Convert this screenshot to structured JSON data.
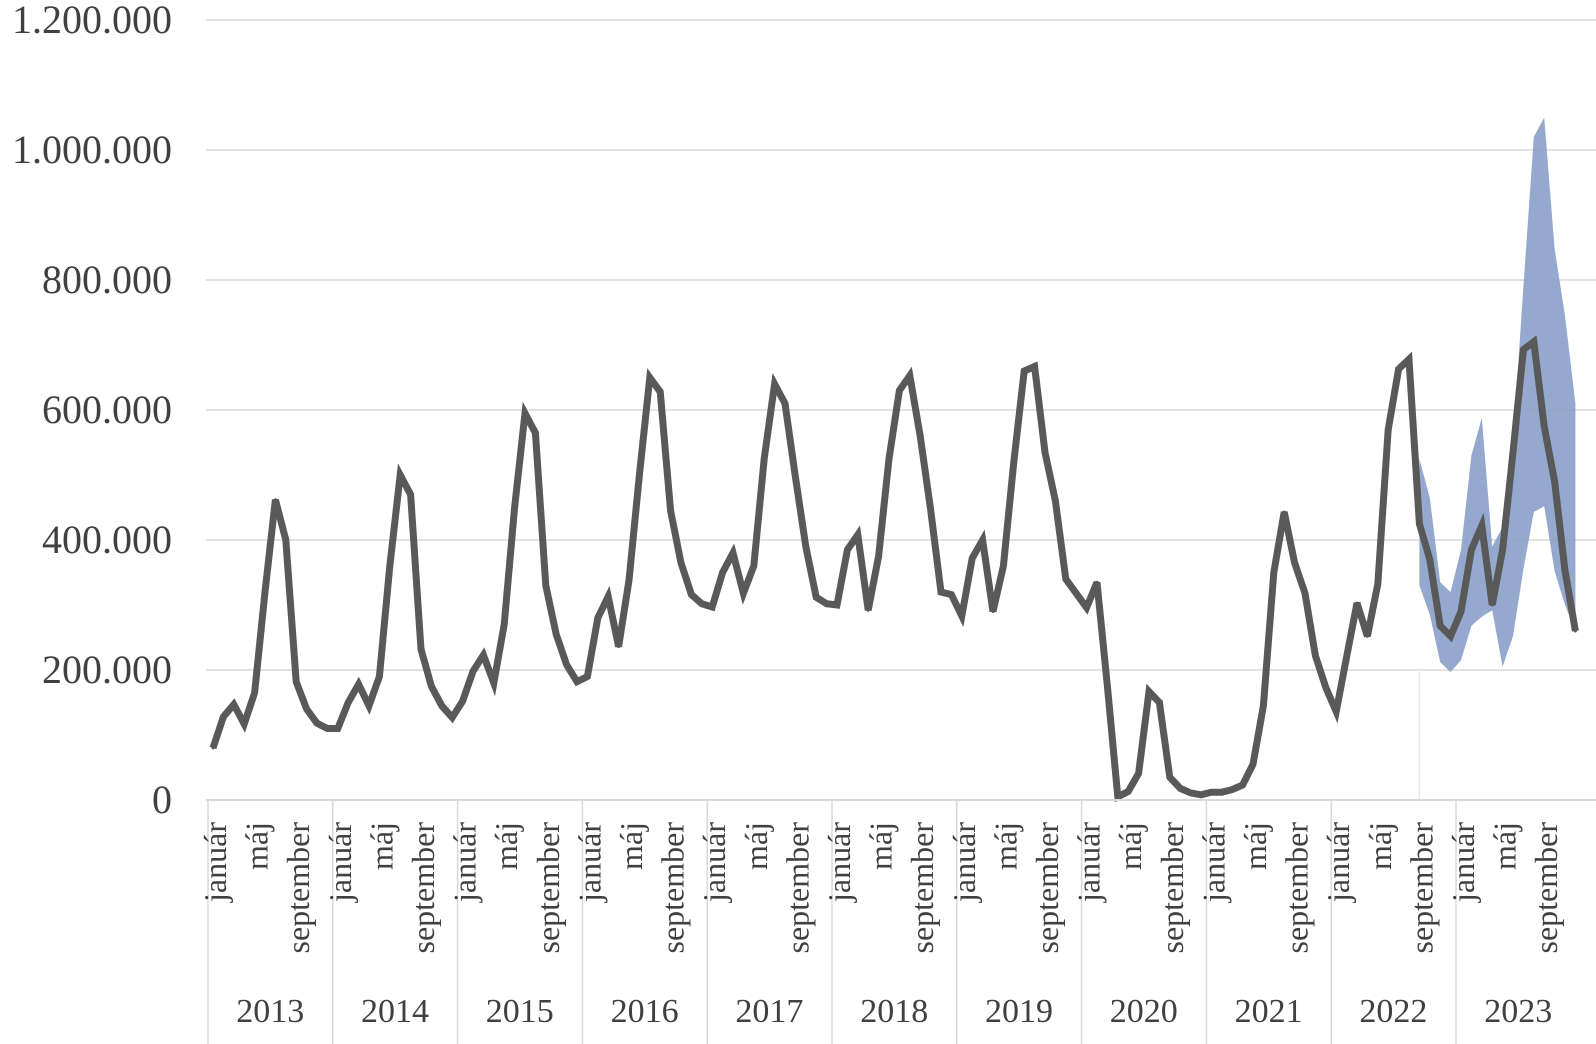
{
  "chart_data": {
    "type": "line",
    "title": "",
    "xlabel": "",
    "ylabel": "",
    "ylim": [
      0,
      1200000
    ],
    "y_ticks": [
      {
        "value": 0,
        "label": "0"
      },
      {
        "value": 200000,
        "label": "200.000"
      },
      {
        "value": 400000,
        "label": "400.000"
      },
      {
        "value": 600000,
        "label": "600.000"
      },
      {
        "value": 800000,
        "label": "800.000"
      },
      {
        "value": 1000000,
        "label": "1.000.000"
      },
      {
        "value": 1200000,
        "label": "1.200.000"
      }
    ],
    "grid": true,
    "legend": "none",
    "month_tick_labels": [
      "január",
      "máj",
      "september"
    ],
    "years": [
      "2013",
      "2014",
      "2015",
      "2016",
      "2017",
      "2018",
      "2019",
      "2020",
      "2021",
      "2022",
      "2023"
    ],
    "year_month_counts": [
      12,
      12,
      12,
      12,
      12,
      12,
      12,
      12,
      12,
      12,
      12
    ],
    "series": [
      {
        "values": [
          80000,
          128000,
          147000,
          117000,
          165000,
          320000,
          462000,
          400000,
          182000,
          140000,
          118000,
          110000,
          110000,
          150000,
          178000,
          145000,
          190000,
          360000,
          500000,
          470000,
          232000,
          175000,
          145000,
          127000,
          152000,
          198000,
          223000,
          180000,
          270000,
          450000,
          595000,
          565000,
          330000,
          255000,
          208000,
          182000,
          190000,
          280000,
          313000,
          236000,
          338000,
          500000,
          650000,
          628000,
          445000,
          365000,
          316000,
          302000,
          297000,
          350000,
          380000,
          318000,
          360000,
          525000,
          640000,
          610000,
          497000,
          390000,
          312000,
          302000,
          300000,
          385000,
          408000,
          292000,
          375000,
          525000,
          630000,
          653000,
          560000,
          447000,
          320000,
          316000,
          283000,
          372000,
          400000,
          290000,
          360000,
          520000,
          660000,
          667000,
          535000,
          460000,
          340000,
          318000,
          296000,
          335000,
          175000,
          5000,
          13000,
          41000,
          167000,
          150000,
          35000,
          18000,
          11000,
          8000,
          12000,
          12000,
          16000,
          23000,
          55000,
          145000,
          350000,
          443000,
          365000,
          318000,
          222000,
          173000,
          136000,
          220000,
          303000,
          252000,
          332000,
          570000,
          663000,
          678000,
          425000,
          370000,
          268000,
          252000,
          290000,
          385000,
          422000,
          300000,
          385000,
          535000,
          693000,
          705000,
          575000,
          490000,
          353000,
          260000
        ],
        "color": "#595959"
      }
    ],
    "forecast_band": {
      "start_index": 116,
      "lower": [
        330000,
        285000,
        212000,
        197000,
        215000,
        268000,
        282000,
        292000,
        205000,
        252000,
        355000,
        443000,
        452000,
        352000,
        300000,
        260000
      ],
      "upper": [
        525000,
        465000,
        335000,
        320000,
        385000,
        530000,
        588000,
        390000,
        420000,
        550000,
        790000,
        1020000,
        1050000,
        848000,
        745000,
        610000
      ],
      "color": "#8a9fc8"
    }
  }
}
